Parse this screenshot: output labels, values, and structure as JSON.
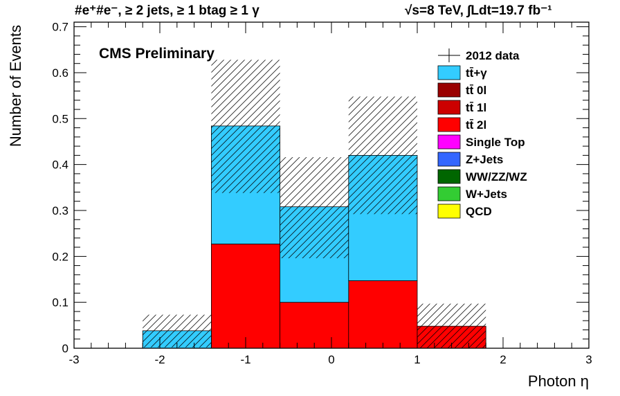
{
  "header": {
    "left": "#e⁺#e⁻, ≥ 2 jets, ≥ 1 btag ≥ 1 γ",
    "right": "√s=8 TeV,   ∫Ldt=19.7 fb⁻¹"
  },
  "cms_label": "CMS Preliminary",
  "chart_data": {
    "type": "bar",
    "stacked": true,
    "xlabel": "Photon η",
    "ylabel": "Number of Events",
    "xlim": [
      -3,
      3
    ],
    "ylim": [
      0,
      0.71
    ],
    "x_ticks": [
      -3,
      -2,
      -1,
      0,
      1,
      2,
      3
    ],
    "y_ticks": [
      0,
      0.1,
      0.2,
      0.3,
      0.4,
      0.5,
      0.6,
      0.7
    ],
    "x_tick_labels": [
      "-3",
      "-2",
      "-1",
      "0",
      "1",
      "2",
      "3"
    ],
    "y_tick_labels": [
      "0",
      "0.1",
      "0.2",
      "0.3",
      "0.4",
      "0.5",
      "0.6",
      "0.7"
    ],
    "bin_edges": [
      -3.0,
      -2.2,
      -1.4,
      -0.6,
      0.2,
      1.0,
      1.8,
      2.6,
      3.0
    ],
    "series": [
      {
        "name": "tt̄ 2l",
        "color": "#ff0000",
        "values": [
          0,
          0,
          0.227,
          0.1,
          0.147,
          0.048,
          0,
          0
        ]
      },
      {
        "name": "tt̄+γ",
        "color": "#33ccff",
        "values": [
          0,
          0.038,
          0.257,
          0.208,
          0.273,
          0,
          0,
          0
        ]
      }
    ],
    "uncertainty_band": {
      "low": [
        0,
        0.002,
        0.338,
        0.196,
        0.292,
        0.0,
        0,
        0
      ],
      "high": [
        0,
        0.073,
        0.628,
        0.416,
        0.548,
        0.097,
        0,
        0
      ]
    },
    "legend": {
      "placement": "top-right",
      "entries": [
        {
          "label": "2012 data",
          "color": "#000000",
          "marker": "data"
        },
        {
          "label": "tt̄+γ",
          "color": "#33ccff"
        },
        {
          "label": "tt̄ 0l",
          "color": "#990000"
        },
        {
          "label": "tt̄ 1l",
          "color": "#cc0000"
        },
        {
          "label": "tt̄ 2l",
          "color": "#ff0000"
        },
        {
          "label": "Single Top",
          "color": "#ff00ff"
        },
        {
          "label": "Z+Jets",
          "color": "#3366ff"
        },
        {
          "label": "WW/ZZ/WZ",
          "color": "#006600"
        },
        {
          "label": "W+Jets",
          "color": "#33cc33"
        },
        {
          "label": "QCD",
          "color": "#ffff00"
        }
      ]
    }
  }
}
